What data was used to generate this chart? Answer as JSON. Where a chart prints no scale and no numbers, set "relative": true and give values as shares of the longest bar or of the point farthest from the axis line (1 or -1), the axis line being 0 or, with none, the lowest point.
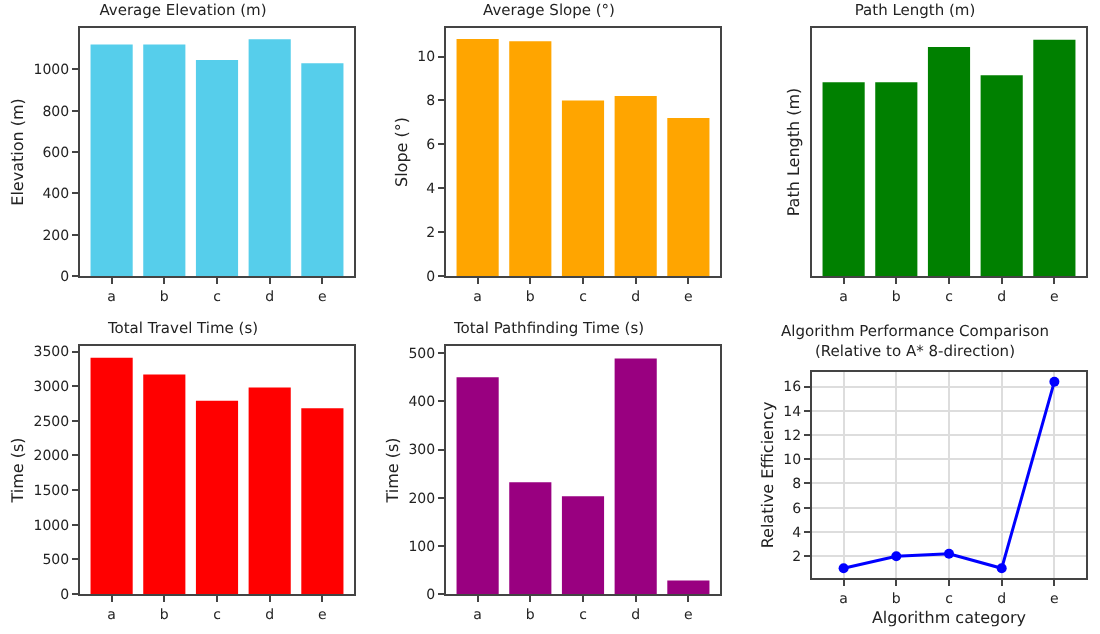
{
  "chart_data": [
    {
      "type": "bar",
      "title": "Average Elevation (m)",
      "ylabel": "Elevation (m)",
      "categories": [
        "a",
        "b",
        "c",
        "d",
        "e"
      ],
      "values": [
        1120,
        1120,
        1045,
        1145,
        1030
      ],
      "color": "#56ceeb",
      "ylim": [
        0,
        1200
      ],
      "yticks": [
        0,
        200,
        400,
        600,
        800,
        1000
      ],
      "grid": false,
      "legend": false
    },
    {
      "type": "bar",
      "title": "Average Slope (°)",
      "ylabel": "Slope (°)",
      "categories": [
        "a",
        "b",
        "c",
        "d",
        "e"
      ],
      "values": [
        10.8,
        10.7,
        8.0,
        8.2,
        7.2
      ],
      "color": "#ffa500",
      "ylim": [
        0,
        11.3
      ],
      "yticks": [
        0,
        2,
        4,
        6,
        8,
        10
      ],
      "grid": false,
      "legend": false
    },
    {
      "type": "bar",
      "title": "Path Length (m)",
      "ylabel": "Path Length (m)",
      "categories": [
        "a",
        "b",
        "c",
        "d",
        "e"
      ],
      "values": [
        0.82,
        0.82,
        0.97,
        0.85,
        1
      ],
      "color": "#008000",
      "relative": true,
      "grid": false,
      "legend": false
    },
    {
      "type": "bar",
      "title": "Total Travel Time (s)",
      "ylabel": "Time (s)",
      "categories": [
        "a",
        "b",
        "c",
        "d",
        "e"
      ],
      "values": [
        3410,
        3170,
        2790,
        2980,
        2680
      ],
      "color": "#ff0000",
      "ylim": [
        0,
        3580
      ],
      "yticks": [
        0,
        500,
        1000,
        1500,
        2000,
        2500,
        3000,
        3500
      ],
      "grid": false,
      "legend": false
    },
    {
      "type": "bar",
      "title": "Total Pathfinding Time (s)",
      "ylabel": "Time (s)",
      "categories": [
        "a",
        "b",
        "c",
        "d",
        "e"
      ],
      "values": [
        450,
        232,
        203,
        489,
        28
      ],
      "color": "#990080",
      "ylim": [
        0,
        515
      ],
      "yticks": [
        0,
        100,
        200,
        300,
        400,
        500
      ],
      "grid": false,
      "legend": false
    },
    {
      "type": "line",
      "title": "Algorithm Performance Comparison\n(Relative to A* 8-direction)",
      "xlabel": "Algorithm category",
      "ylabel": "Relative Efficiency",
      "categories": [
        "a",
        "b",
        "c",
        "d",
        "e"
      ],
      "values": [
        1.0,
        2.0,
        2.2,
        1.0,
        16.4
      ],
      "color": "#0000ff",
      "marker": "circle",
      "line_style": "solid",
      "ylim": [
        0.2,
        17.2
      ],
      "yticks": [
        2,
        4,
        6,
        8,
        10,
        12,
        14,
        16
      ],
      "grid": true,
      "legend": false
    }
  ]
}
